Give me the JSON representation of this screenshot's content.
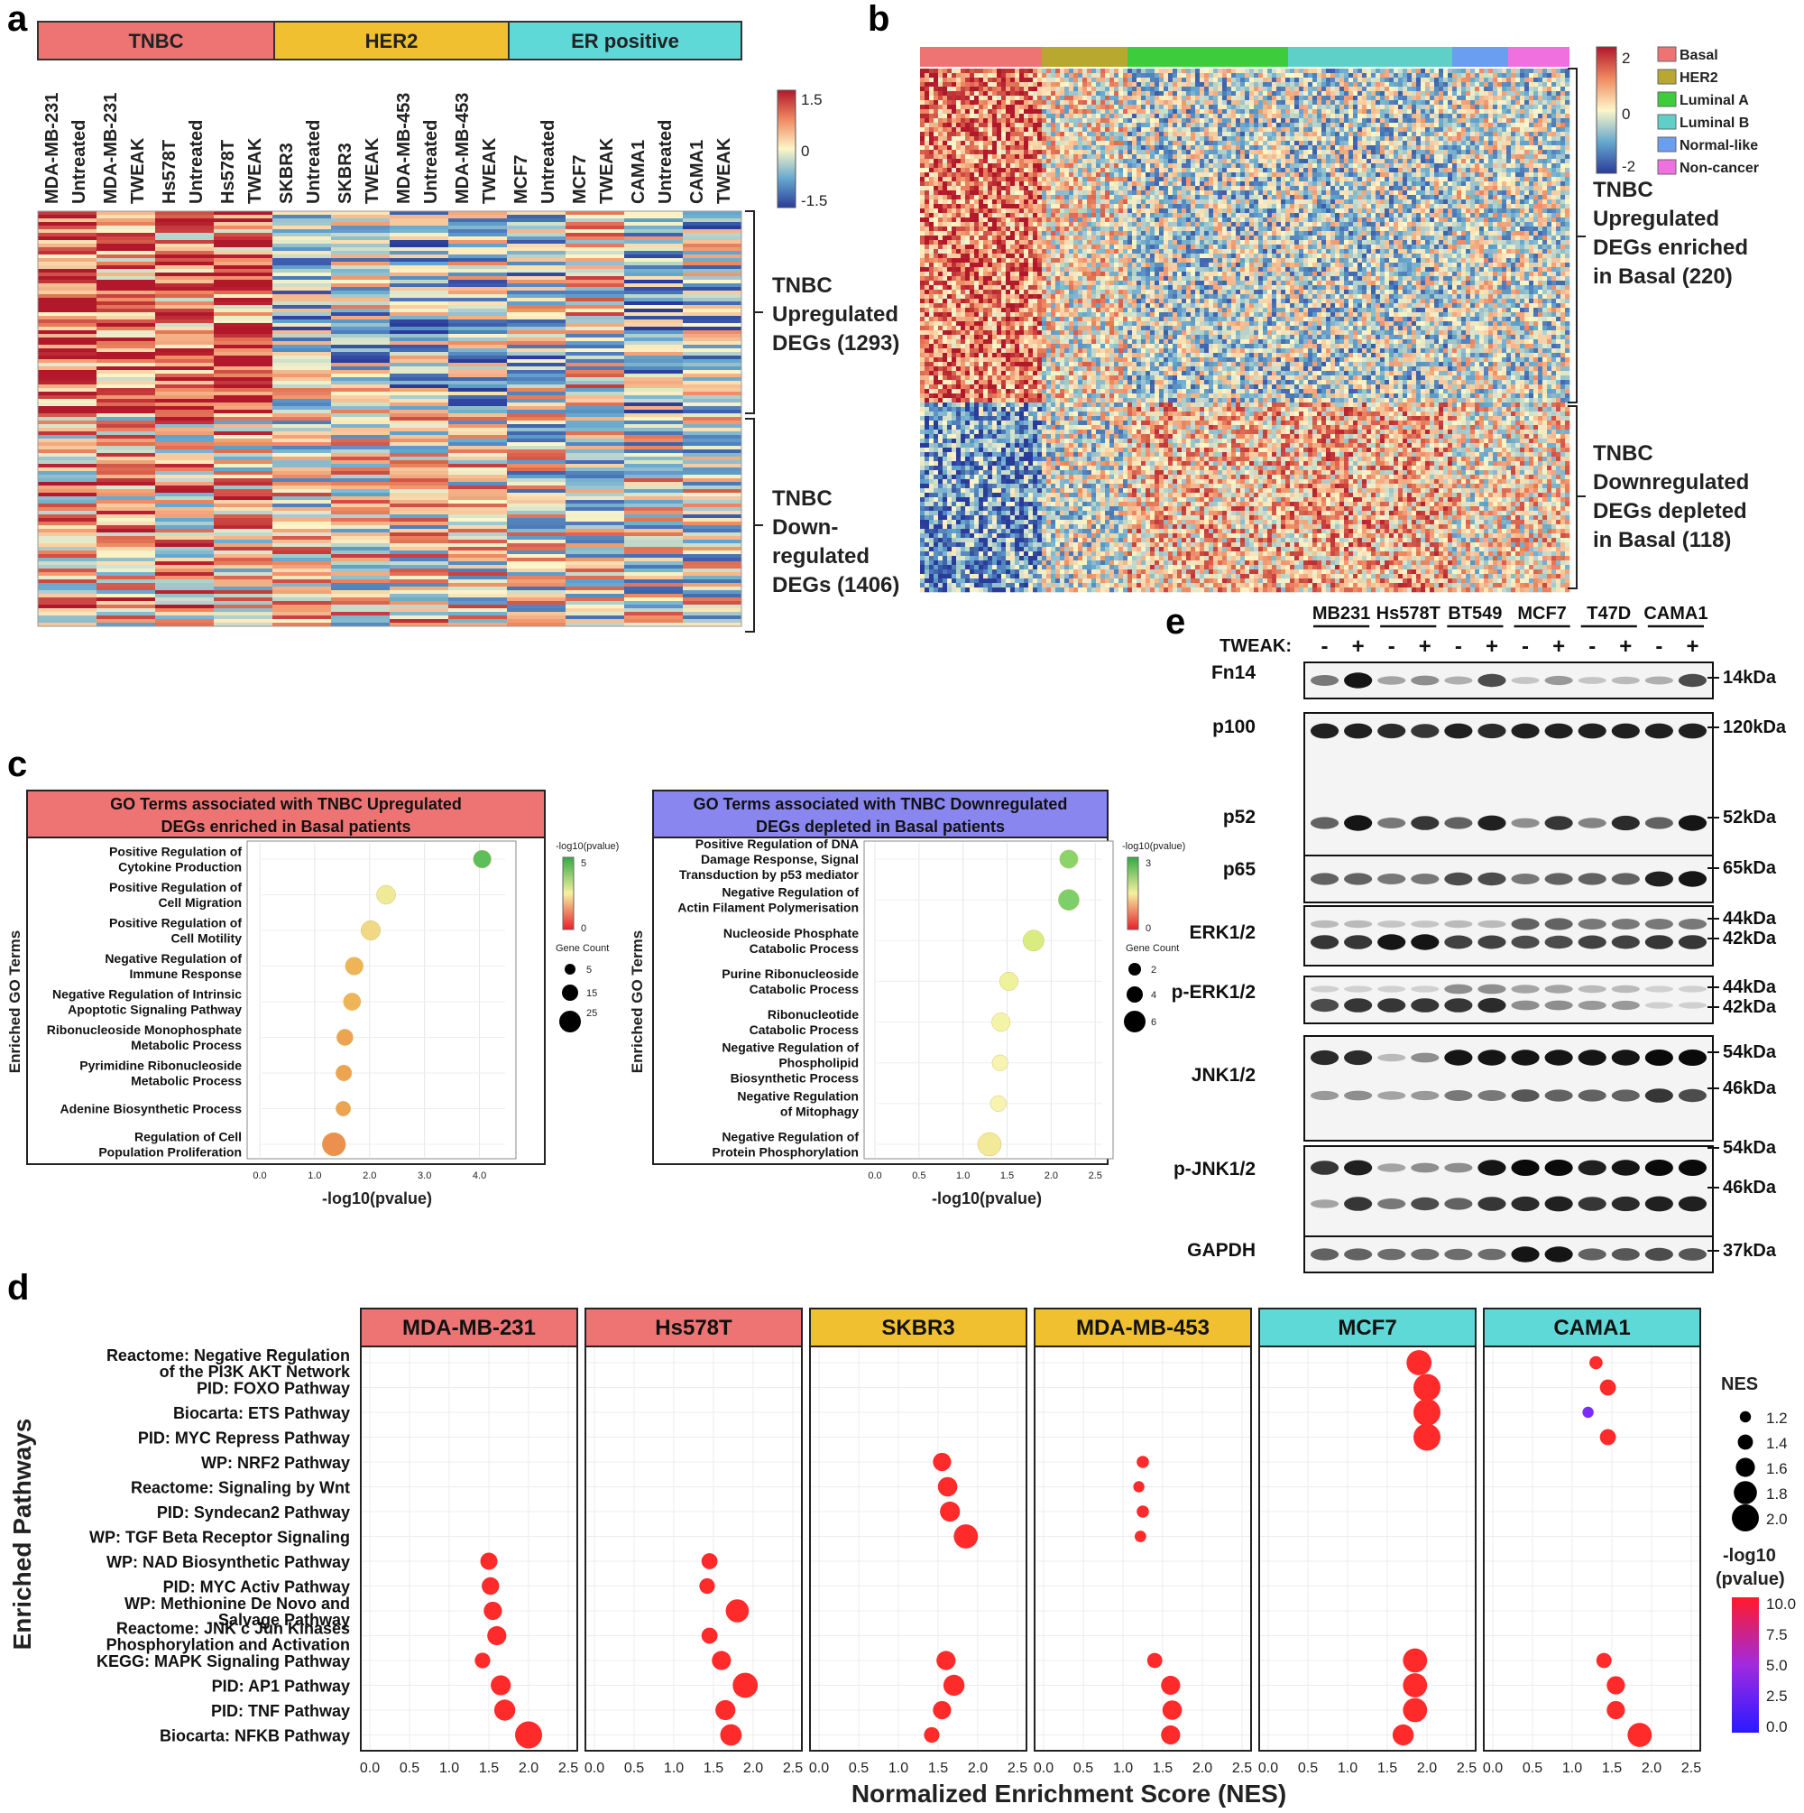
{
  "figure": {
    "panel_labels": [
      "a",
      "b",
      "c",
      "d",
      "e"
    ]
  },
  "colors": {
    "tnbc": "#ee7474",
    "her2": "#f0c030",
    "er": "#5fd8d8",
    "basal": "#ee7474",
    "her2_b": "#b8a830",
    "luminal_a": "#3ccc3c",
    "luminal_b": "#5fd0c8",
    "normal_like": "#6a9ef0",
    "non_cancer": "#f070e0",
    "dot_red": "#ff2a2a",
    "dot_violet": "#7a2cff",
    "go_up_header": "#ee7474",
    "go_down_header": "#8a86f0"
  },
  "chart_data": [
    {
      "id": "a",
      "type": "heatmap",
      "groups": [
        {
          "label": "TNBC",
          "color": "#ee7474"
        },
        {
          "label": "HER2",
          "color": "#f0c030"
        },
        {
          "label": "ER positive",
          "color": "#5fd8d8"
        }
      ],
      "columns": [
        {
          "line1": "MDA-MB-231",
          "line2": "Untreated"
        },
        {
          "line1": "MDA-MB-231",
          "line2": "TWEAK"
        },
        {
          "line1": "Hs578T",
          "line2": "Untreated"
        },
        {
          "line1": "Hs578T",
          "line2": "TWEAK"
        },
        {
          "line1": "SKBR3",
          "line2": "Untreated"
        },
        {
          "line1": "SKBR3",
          "line2": "TWEAK"
        },
        {
          "line1": "MDA-MB-453",
          "line2": "Untreated"
        },
        {
          "line1": "MDA-MB-453",
          "line2": "TWEAK"
        },
        {
          "line1": "MCF7",
          "line2": "Untreated"
        },
        {
          "line1": "MCF7",
          "line2": "TWEAK"
        },
        {
          "line1": "CAMA1",
          "line2": "Untreated"
        },
        {
          "line1": "CAMA1",
          "line2": "TWEAK"
        }
      ],
      "scale": {
        "max": "1.5",
        "mid": "0",
        "min": "-1.5"
      },
      "brackets": [
        {
          "lines": [
            "TNBC",
            "Upregulated",
            "DEGs (1293)"
          ]
        },
        {
          "lines": [
            "TNBC",
            "Down-",
            "regulated",
            "DEGs (1406)"
          ]
        }
      ]
    },
    {
      "id": "b",
      "type": "heatmap",
      "groups": [
        {
          "label": "Basal",
          "color": "#ee7474"
        },
        {
          "label": "HER2",
          "color": "#b8a830"
        },
        {
          "label": "Luminal A",
          "color": "#3ccc3c"
        },
        {
          "label": "Luminal B",
          "color": "#5fd0c8"
        },
        {
          "label": "Normal-like",
          "color": "#6a9ef0"
        },
        {
          "label": "Non-cancer",
          "color": "#f070e0"
        }
      ],
      "scale": {
        "max": "2",
        "mid": "0",
        "min": "-2"
      },
      "brackets": [
        {
          "lines": [
            "TNBC",
            "Upregulated",
            "DEGs enriched",
            "in Basal (220)"
          ]
        },
        {
          "lines": [
            "TNBC",
            "Downregulated",
            "DEGs depleted",
            "in Basal (118)"
          ]
        }
      ]
    },
    {
      "id": "c-up",
      "type": "scatter",
      "title": [
        "GO Terms associated with TNBC Upregulated",
        "DEGs enriched in Basal patients"
      ],
      "ylabel": "Enriched GO Terms",
      "xlabel": "-log10(pvalue)",
      "xlim": [
        0,
        4.5
      ],
      "xticks": [
        "0.0",
        "1.0",
        "2.0",
        "3.0",
        "4.0"
      ],
      "xtick_values": [
        0,
        1,
        2,
        3,
        4
      ],
      "color_title": "-log10(pvalue)",
      "color_range": [
        "5",
        "0"
      ],
      "size_title": "Gene Count",
      "size_legend": [
        "5",
        "15",
        "25"
      ],
      "terms": [
        {
          "lines": [
            "Positive Regulation of",
            "Cytokine Production"
          ],
          "x": 4.05,
          "size": 14,
          "color": "#5cbf5c"
        },
        {
          "lines": [
            "Positive Regulation of",
            "Cell Migration"
          ],
          "x": 2.3,
          "size": 16,
          "color": "#eeea98"
        },
        {
          "lines": [
            "Positive Regulation of",
            "Cell Motility"
          ],
          "x": 2.02,
          "size": 17,
          "color": "#f0d884"
        },
        {
          "lines": [
            "Negative Regulation of",
            "Immune Response"
          ],
          "x": 1.72,
          "size": 14,
          "color": "#f0b458"
        },
        {
          "lines": [
            "Negative Regulation of Intrinsic",
            "Apoptotic Signaling Pathway"
          ],
          "x": 1.68,
          "size": 13,
          "color": "#f0b458"
        },
        {
          "lines": [
            "Ribonucleoside Monophosphate",
            "Metabolic Process"
          ],
          "x": 1.55,
          "size": 11,
          "color": "#eda450"
        },
        {
          "lines": [
            "Pyrimidine Ribonucleoside",
            "Metabolic Process"
          ],
          "x": 1.53,
          "size": 10,
          "color": "#eda450"
        },
        {
          "lines": [
            "Adenine Biosynthetic Process"
          ],
          "x": 1.52,
          "size": 8,
          "color": "#eda450"
        },
        {
          "lines": [
            "Regulation of Cell",
            "Population Proliferation"
          ],
          "x": 1.35,
          "size": 25,
          "color": "#ec9050"
        }
      ]
    },
    {
      "id": "c-down",
      "type": "scatter",
      "title": [
        "GO Terms associated with TNBC Downregulated",
        "DEGs depleted in Basal patients"
      ],
      "ylabel": "Enriched GO Terms",
      "xlabel": "-log10(pvalue)",
      "xlim": [
        0,
        2.6
      ],
      "xticks": [
        "0.0",
        "0.5",
        "1.0",
        "1.5",
        "2.0",
        "2.5"
      ],
      "xtick_values": [
        0,
        0.5,
        1.0,
        1.5,
        2.0,
        2.5
      ],
      "color_title": "-log10(pvalue)",
      "color_range": [
        "3",
        "0"
      ],
      "size_title": "Gene Count",
      "size_legend": [
        "2",
        "4",
        "6"
      ],
      "terms": [
        {
          "lines": [
            "Positive Regulation of DNA",
            "Damage Response, Signal",
            "Transduction by p53 mediator"
          ],
          "x": 2.2,
          "size": 3,
          "color": "#8bd46a"
        },
        {
          "lines": [
            "Negative Regulation of",
            "Actin Filament Polymerisation"
          ],
          "x": 2.2,
          "size": 4,
          "color": "#7dcf6a"
        },
        {
          "lines": [
            "Nucleoside Phosphate",
            "Catabolic Process"
          ],
          "x": 1.8,
          "size": 4,
          "color": "#d8ec80"
        },
        {
          "lines": [
            "Purine Ribonucleoside",
            "Catabolic Process"
          ],
          "x": 1.52,
          "size": 3,
          "color": "#eef29a"
        },
        {
          "lines": [
            "Ribonucleotide",
            "Catabolic Process"
          ],
          "x": 1.43,
          "size": 3,
          "color": "#f4f4a8"
        },
        {
          "lines": [
            "Negative Regulation of",
            "Phospholipid",
            "Biosynthetic Process"
          ],
          "x": 1.42,
          "size": 2,
          "color": "#f6f4b0"
        },
        {
          "lines": [
            "Negative Regulation",
            "of Mitophagy"
          ],
          "x": 1.4,
          "size": 2,
          "color": "#f6f4b0"
        },
        {
          "lines": [
            "Negative Regulation of",
            "Protein Phosphorylation"
          ],
          "x": 1.3,
          "size": 5,
          "color": "#f2ea98"
        }
      ]
    },
    {
      "id": "d",
      "type": "scatter",
      "ylabel": "Enriched Pathways",
      "xlabel": "Normalized Enrichment Score (NES)",
      "xlim": [
        0,
        2.5
      ],
      "xticks": [
        "0.0",
        "0.5",
        "1.0",
        "1.5",
        "2.0",
        "2.5"
      ],
      "xtick_values": [
        0,
        0.5,
        1.0,
        1.5,
        2.0,
        2.5
      ],
      "size_title": "NES",
      "size_legend": [
        "1.2",
        "1.4",
        "1.6",
        "1.8",
        "2.0"
      ],
      "color_title": [
        "-log10",
        "(pvalue)"
      ],
      "color_ticks": [
        "10.0",
        "7.5",
        "5.0",
        "2.5",
        "0.0"
      ],
      "pathways": [
        {
          "lines": [
            "Reactome: Negative Regulation",
            "of the PI3K AKT Network"
          ]
        },
        {
          "lines": [
            "PID: FOXO Pathway"
          ]
        },
        {
          "lines": [
            "Biocarta: ETS Pathway"
          ]
        },
        {
          "lines": [
            "PID: MYC Repress Pathway"
          ]
        },
        {
          "lines": [
            "WP: NRF2 Pathway"
          ]
        },
        {
          "lines": [
            "Reactome: Signaling by Wnt"
          ]
        },
        {
          "lines": [
            "PID: Syndecan2 Pathway"
          ]
        },
        {
          "lines": [
            "WP: TGF Beta Receptor Signaling"
          ]
        },
        {
          "lines": [
            "WP: NAD Biosynthetic Pathway"
          ]
        },
        {
          "lines": [
            "PID: MYC Activ Pathway"
          ]
        },
        {
          "lines": [
            "WP: Methionine De Novo and",
            "Salvage Pathway"
          ]
        },
        {
          "lines": [
            "Reactome: JNK c Jun Kinases",
            "Phosphorylation and Activation"
          ]
        },
        {
          "lines": [
            "KEGG: MAPK Signaling Pathway"
          ]
        },
        {
          "lines": [
            "PID: AP1 Pathway"
          ]
        },
        {
          "lines": [
            "PID: TNF Pathway"
          ]
        },
        {
          "lines": [
            "Biocarta: NFKB Pathway"
          ]
        }
      ],
      "facets": [
        {
          "label": "MDA-MB-231",
          "color": "#ee7474",
          "points": [
            {
              "p": 8,
              "nes": 1.5
            },
            {
              "p": 9,
              "nes": 1.52
            },
            {
              "p": 10,
              "nes": 1.55
            },
            {
              "p": 11,
              "nes": 1.6
            },
            {
              "p": 12,
              "nes": 1.42
            },
            {
              "p": 13,
              "nes": 1.65
            },
            {
              "p": 14,
              "nes": 1.7
            },
            {
              "p": 15,
              "nes": 2.0
            }
          ]
        },
        {
          "label": "Hs578T",
          "color": "#ee7474",
          "points": [
            {
              "p": 8,
              "nes": 1.45
            },
            {
              "p": 9,
              "nes": 1.42
            },
            {
              "p": 10,
              "nes": 1.8
            },
            {
              "p": 11,
              "nes": 1.45
            },
            {
              "p": 12,
              "nes": 1.6
            },
            {
              "p": 13,
              "nes": 1.9
            },
            {
              "p": 14,
              "nes": 1.65
            },
            {
              "p": 15,
              "nes": 1.72
            }
          ]
        },
        {
          "label": "SKBR3",
          "color": "#f0c030",
          "points": [
            {
              "p": 4,
              "nes": 1.55
            },
            {
              "p": 5,
              "nes": 1.62
            },
            {
              "p": 6,
              "nes": 1.65
            },
            {
              "p": 7,
              "nes": 1.85
            },
            {
              "p": 12,
              "nes": 1.6
            },
            {
              "p": 13,
              "nes": 1.7
            },
            {
              "p": 14,
              "nes": 1.55
            },
            {
              "p": 15,
              "nes": 1.42
            }
          ]
        },
        {
          "label": "MDA-MB-453",
          "color": "#f0c030",
          "points": [
            {
              "p": 4,
              "nes": 1.25
            },
            {
              "p": 5,
              "nes": 1.2
            },
            {
              "p": 6,
              "nes": 1.25
            },
            {
              "p": 7,
              "nes": 1.22
            },
            {
              "p": 12,
              "nes": 1.4
            },
            {
              "p": 13,
              "nes": 1.6
            },
            {
              "p": 14,
              "nes": 1.62
            },
            {
              "p": 15,
              "nes": 1.6
            }
          ]
        },
        {
          "label": "MCF7",
          "color": "#5fd8d8",
          "points": [
            {
              "p": 0,
              "nes": 1.9
            },
            {
              "p": 1,
              "nes": 2.0
            },
            {
              "p": 2,
              "nes": 2.0
            },
            {
              "p": 3,
              "nes": 2.0
            },
            {
              "p": 12,
              "nes": 1.85
            },
            {
              "p": 13,
              "nes": 1.85
            },
            {
              "p": 14,
              "nes": 1.85
            },
            {
              "p": 15,
              "nes": 1.7
            }
          ]
        },
        {
          "label": "CAMA1",
          "color": "#5fd8d8",
          "points": [
            {
              "p": 0,
              "nes": 1.3
            },
            {
              "p": 1,
              "nes": 1.45
            },
            {
              "p": 2,
              "nes": 1.2,
              "violet": true
            },
            {
              "p": 3,
              "nes": 1.45
            },
            {
              "p": 12,
              "nes": 1.4
            },
            {
              "p": 13,
              "nes": 1.55
            },
            {
              "p": 14,
              "nes": 1.55
            },
            {
              "p": 15,
              "nes": 1.85
            }
          ]
        }
      ]
    },
    {
      "id": "e",
      "type": "table",
      "cell_lines": [
        "MB231",
        "Hs578T",
        "BT549",
        "MCF7",
        "T47D",
        "CAMA1"
      ],
      "tweak_label": "TWEAK:",
      "tweak_signs": [
        "-",
        "+"
      ],
      "blots": [
        {
          "name": "Fn14",
          "sizes": [
            "14kDa"
          ]
        },
        {
          "name": "p100",
          "sizes": [
            "120kDa"
          ]
        },
        {
          "name": "p52",
          "sizes": [
            "52kDa"
          ]
        },
        {
          "name": "p65",
          "sizes": [
            "65kDa"
          ]
        },
        {
          "name": "ERK1/2",
          "sizes": [
            "44kDa",
            "42kDa"
          ]
        },
        {
          "name": "p-ERK1/2",
          "sizes": [
            "44kDa",
            "42kDa"
          ]
        },
        {
          "name": "JNK1/2",
          "sizes": [
            "54kDa",
            "46kDa"
          ]
        },
        {
          "name": "p-JNK1/2",
          "sizes": [
            "54kDa",
            "46kDa"
          ]
        },
        {
          "name": "GAPDH",
          "sizes": [
            "37kDa"
          ]
        }
      ]
    }
  ]
}
